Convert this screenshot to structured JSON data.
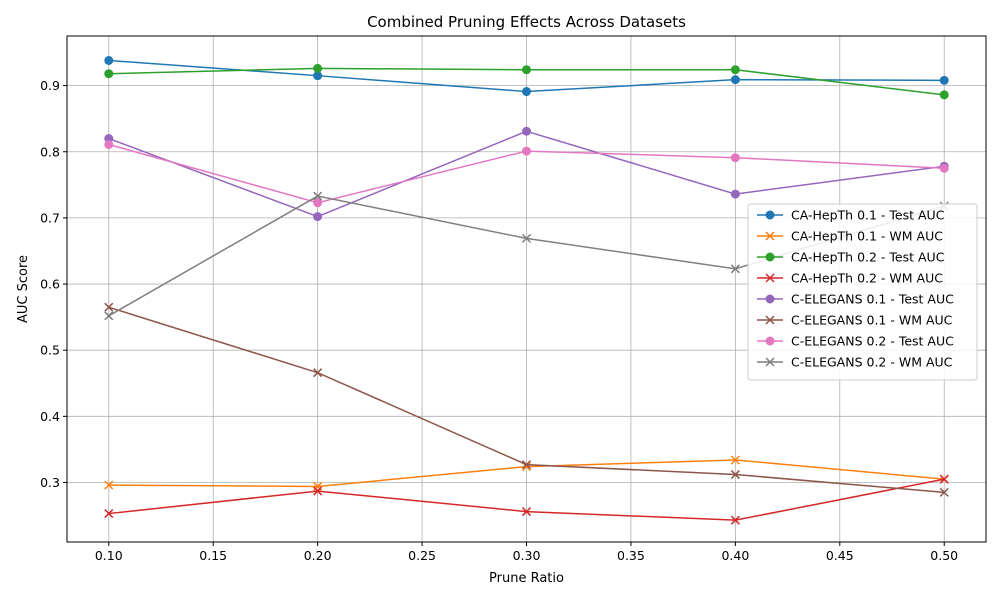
{
  "chart_data": {
    "type": "line",
    "title": "Combined Pruning Effects Across Datasets",
    "xlabel": "Prune Ratio",
    "ylabel": "AUC Score",
    "xlim": [
      0.08,
      0.52
    ],
    "ylim": [
      0.21,
      0.975
    ],
    "x_ticks": [
      "0.10",
      "0.15",
      "0.20",
      "0.25",
      "0.30",
      "0.35",
      "0.40",
      "0.45",
      "0.50"
    ],
    "y_ticks": [
      "0.3",
      "0.4",
      "0.5",
      "0.6",
      "0.7",
      "0.8",
      "0.9"
    ],
    "grid": true,
    "legend_position": "center-right",
    "x": [
      0.1,
      0.2,
      0.3,
      0.4,
      0.5
    ],
    "series": [
      {
        "name": "CA-HepTh 0.1 - Test AUC",
        "color": "#1f77b4",
        "marker": "circle",
        "values": [
          0.938,
          0.915,
          0.891,
          0.909,
          0.908
        ]
      },
      {
        "name": "CA-HepTh 0.1 - WM AUC",
        "color": "#ff7f0e",
        "marker": "x",
        "values": [
          0.296,
          0.294,
          0.324,
          0.334,
          0.305
        ]
      },
      {
        "name": "CA-HepTh 0.2 - Test AUC",
        "color": "#2ca02c",
        "marker": "circle",
        "values": [
          0.918,
          0.926,
          0.924,
          0.924,
          0.886
        ]
      },
      {
        "name": "CA-HepTh 0.2 - WM AUC",
        "color": "#d62728",
        "marker": "x",
        "values": [
          0.253,
          0.287,
          0.256,
          0.243,
          0.305
        ]
      },
      {
        "name": "C-ELEGANS 0.1 - Test AUC",
        "color": "#9467bd",
        "marker": "circle",
        "values": [
          0.82,
          0.702,
          0.831,
          0.736,
          0.778
        ]
      },
      {
        "name": "C-ELEGANS 0.1 - WM AUC",
        "color": "#8c564b",
        "marker": "x",
        "values": [
          0.565,
          0.466,
          0.327,
          0.312,
          0.285
        ]
      },
      {
        "name": "C-ELEGANS 0.2 - Test AUC",
        "color": "#e377c2",
        "marker": "circle",
        "values": [
          0.811,
          0.723,
          0.801,
          0.791,
          0.775
        ]
      },
      {
        "name": "C-ELEGANS 0.2 - WM AUC",
        "color": "#7f7f7f",
        "marker": "x",
        "values": [
          0.552,
          0.733,
          0.669,
          0.623,
          0.718
        ]
      }
    ]
  }
}
